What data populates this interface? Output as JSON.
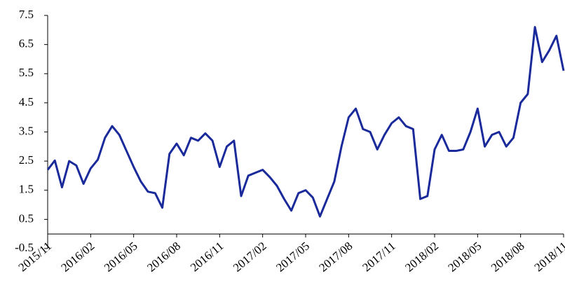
{
  "chart_data": {
    "type": "line",
    "categories": [
      "2015/11",
      null,
      null,
      null,
      null,
      null,
      "2016/02",
      null,
      null,
      null,
      null,
      null,
      "2016/05",
      null,
      null,
      null,
      null,
      null,
      "2016/08",
      null,
      null,
      null,
      null,
      null,
      "2016/11",
      null,
      null,
      null,
      null,
      null,
      "2017/02",
      null,
      null,
      null,
      null,
      null,
      "2017/05",
      null,
      null,
      null,
      null,
      null,
      "2017/08",
      null,
      null,
      null,
      null,
      null,
      "2017/11",
      null,
      null,
      null,
      null,
      null,
      "2018/02",
      null,
      null,
      null,
      null,
      null,
      "2018/05",
      null,
      null,
      null,
      null,
      null,
      "2018/08",
      null,
      null,
      null,
      null,
      null,
      "2018/11"
    ],
    "series": [
      {
        "color": "#1a2a9a",
        "values": [
          2.2,
          2.52,
          1.6,
          2.5,
          2.35,
          1.72,
          2.25,
          2.55,
          3.3,
          3.7,
          3.4,
          2.85,
          2.3,
          1.8,
          1.45,
          1.4,
          0.9,
          2.75,
          3.1,
          2.7,
          3.3,
          3.2,
          3.45,
          3.2,
          2.3,
          3.0,
          3.2,
          1.3,
          2.0,
          2.1,
          2.2,
          1.95,
          1.65,
          1.2,
          0.8,
          1.4,
          1.5,
          1.25,
          0.6,
          1.2,
          1.8,
          3.0,
          4.0,
          4.3,
          3.6,
          3.5,
          2.9,
          3.4,
          3.8,
          4.0,
          3.7,
          3.6,
          1.2,
          1.3,
          2.9,
          3.4,
          2.85,
          2.85,
          2.9,
          3.5,
          4.3,
          3.0,
          3.4,
          3.5,
          3.0,
          3.3,
          4.5,
          4.8,
          7.1,
          5.9,
          6.3,
          6.8,
          5.6
        ]
      }
    ],
    "ylim": [
      -0.5,
      7.5
    ],
    "yticks": [
      -0.5,
      0.5,
      1.5,
      2.5,
      3.5,
      4.5,
      5.5,
      6.5,
      7.5
    ]
  }
}
